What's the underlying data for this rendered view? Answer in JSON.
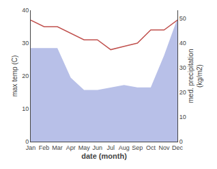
{
  "chart_data": {
    "type": "line",
    "categories": [
      "Jan",
      "Feb",
      "Mar",
      "Apr",
      "May",
      "Jun",
      "Jul",
      "Aug",
      "Sep",
      "Oct",
      "Nov",
      "Dec"
    ],
    "xlabel": "date (month)",
    "ylabel": "max temp (C)",
    "y2label": "med. precipitation\n(kg/m2)",
    "series": [
      {
        "type": "area",
        "color": "#b8c0e8",
        "axis": "y2",
        "values": [
          38,
          38,
          38,
          26,
          21,
          21,
          22,
          23,
          22,
          22,
          35,
          50
        ]
      },
      {
        "type": "line",
        "color": "#c0504d",
        "values": [
          37,
          35,
          35,
          33,
          31,
          31,
          28,
          29,
          30,
          34,
          34,
          37
        ]
      }
    ],
    "ylim": [
      0,
      40
    ],
    "yticks": [
      0,
      10,
      20,
      30,
      40
    ],
    "y2lim": [
      0,
      53.33
    ],
    "y2ticks": [
      0,
      10,
      20,
      30,
      40,
      50
    ],
    "grid": false
  }
}
